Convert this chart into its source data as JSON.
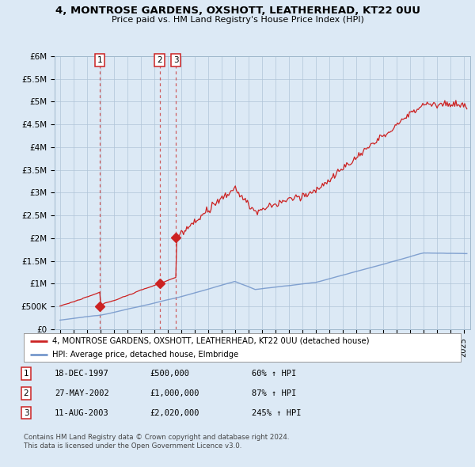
{
  "title": "4, MONTROSE GARDENS, OXSHOTT, LEATHERHEAD, KT22 0UU",
  "subtitle": "Price paid vs. HM Land Registry's House Price Index (HPI)",
  "ylabel_ticks": [
    "£0",
    "£500K",
    "£1M",
    "£1.5M",
    "£2M",
    "£2.5M",
    "£3M",
    "£3.5M",
    "£4M",
    "£4.5M",
    "£5M",
    "£5.5M",
    "£6M"
  ],
  "ytick_values": [
    0,
    500000,
    1000000,
    1500000,
    2000000,
    2500000,
    3000000,
    3500000,
    4000000,
    4500000,
    5000000,
    5500000,
    6000000
  ],
  "sales": [
    {
      "date_num": 1997.97,
      "price": 500000,
      "label": "1"
    },
    {
      "date_num": 2002.41,
      "price": 1000000,
      "label": "2"
    },
    {
      "date_num": 2003.62,
      "price": 2020000,
      "label": "3"
    }
  ],
  "legend_red": "4, MONTROSE GARDENS, OXSHOTT, LEATHERHEAD, KT22 0UU (detached house)",
  "legend_blue": "HPI: Average price, detached house, Elmbridge",
  "table_rows": [
    {
      "num": "1",
      "date": "18-DEC-1997",
      "price": "£500,000",
      "hpi": "60% ↑ HPI"
    },
    {
      "num": "2",
      "date": "27-MAY-2002",
      "price": "£1,000,000",
      "hpi": "87% ↑ HPI"
    },
    {
      "num": "3",
      "date": "11-AUG-2003",
      "price": "£2,020,000",
      "hpi": "245% ↑ HPI"
    }
  ],
  "footer": "Contains HM Land Registry data © Crown copyright and database right 2024.\nThis data is licensed under the Open Government Licence v3.0.",
  "fig_bg": "#dce9f5",
  "plot_bg": "#dce9f5",
  "red_line_color": "#cc2222",
  "blue_line_color": "#7799cc",
  "vline_color": "#cc4444",
  "xmin": 1994.6,
  "xmax": 2025.5,
  "ymin": 0,
  "ymax": 6000000
}
